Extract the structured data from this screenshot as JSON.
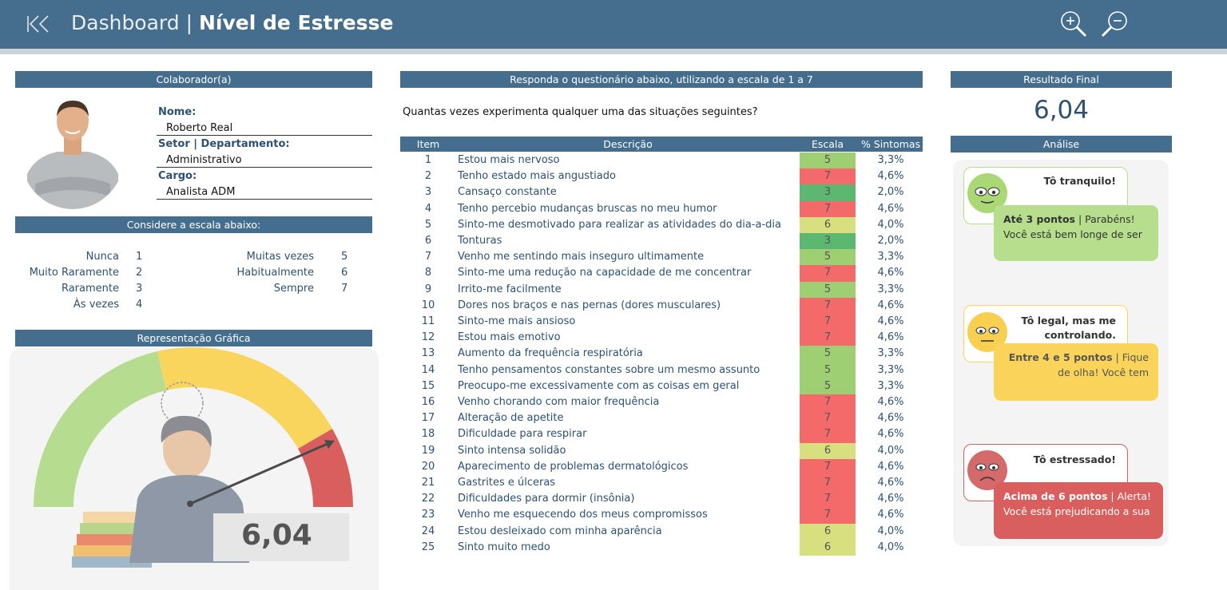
{
  "header": {
    "title_light": "Dashboard | ",
    "title_bold": "Nível de Estresse"
  },
  "employee": {
    "section_title": "Colaborador(a)",
    "name_label": "Nome:",
    "name_value": "Roberto Real",
    "sector_label": "Setor | Departamento:",
    "sector_value": "Administrativo",
    "role_label": "Cargo:",
    "role_value": "Analista ADM"
  },
  "scale": {
    "section_title": "Considere a escala abaixo:",
    "left": [
      {
        "label": "Nunca",
        "value": "1"
      },
      {
        "label": "Muito Raramente",
        "value": "2"
      },
      {
        "label": "Raramente",
        "value": "3"
      },
      {
        "label": "Às vezes",
        "value": "4"
      }
    ],
    "right": [
      {
        "label": "Muitas vezes",
        "value": "5"
      },
      {
        "label": "Habitualmente",
        "value": "6"
      },
      {
        "label": "Sempre",
        "value": "7"
      }
    ]
  },
  "graph": {
    "section_title": "Representação Gráfica",
    "value": "6,04"
  },
  "questionnaire": {
    "section_title": "Responda o questionário abaixo, utilizando a escala de 1 a 7",
    "question": "Quantas vezes experimenta qualquer uma das situações seguintes?",
    "columns": {
      "item": "Item",
      "description": "Descrição",
      "scale": "Escala",
      "pct": "% Sintomas"
    },
    "rows": [
      {
        "item": "1",
        "desc": "Estou mais nervoso",
        "scale": "5",
        "pct": "3,3%"
      },
      {
        "item": "2",
        "desc": "Tenho estado mais angustiado",
        "scale": "7",
        "pct": "4,6%"
      },
      {
        "item": "3",
        "desc": "Cansaço constante",
        "scale": "3",
        "pct": "2,0%"
      },
      {
        "item": "4",
        "desc": "Tenho percebio mudanças bruscas no meu humor",
        "scale": "7",
        "pct": "4,6%"
      },
      {
        "item": "5",
        "desc": "Sinto-me desmotivado para realizar as atividades do dia-a-dia",
        "scale": "6",
        "pct": "4,0%"
      },
      {
        "item": "6",
        "desc": "Tonturas",
        "scale": "3",
        "pct": "2,0%"
      },
      {
        "item": "7",
        "desc": "Venho me sentindo mais inseguro ultimamente",
        "scale": "5",
        "pct": "3,3%"
      },
      {
        "item": "8",
        "desc": "Sinto-me uma redução na capacidade de me concentrar",
        "scale": "7",
        "pct": "4,6%"
      },
      {
        "item": "9",
        "desc": "Irrito-me facilmente",
        "scale": "5",
        "pct": "3,3%"
      },
      {
        "item": "10",
        "desc": "Dores nos braços e nas pernas (dores musculares)",
        "scale": "7",
        "pct": "4,6%"
      },
      {
        "item": "11",
        "desc": "Sinto-me mais ansioso",
        "scale": "7",
        "pct": "4,6%"
      },
      {
        "item": "12",
        "desc": "Estou mais emotivo",
        "scale": "7",
        "pct": "4,6%"
      },
      {
        "item": "13",
        "desc": "Aumento da frequência respiratória",
        "scale": "5",
        "pct": "3,3%"
      },
      {
        "item": "14",
        "desc": "Tenho pensamentos constantes sobre um mesmo assunto",
        "scale": "5",
        "pct": "3,3%"
      },
      {
        "item": "15",
        "desc": "Preocupo-me excessivamente com as coisas em geral",
        "scale": "5",
        "pct": "3,3%"
      },
      {
        "item": "16",
        "desc": "Venho chorando com maior frequência",
        "scale": "7",
        "pct": "4,6%"
      },
      {
        "item": "17",
        "desc": "Alteração de apetite",
        "scale": "7",
        "pct": "4,6%"
      },
      {
        "item": "18",
        "desc": "Dificuldade para respirar",
        "scale": "7",
        "pct": "4,6%"
      },
      {
        "item": "19",
        "desc": "Sinto intensa solidão",
        "scale": "6",
        "pct": "4,0%"
      },
      {
        "item": "20",
        "desc": "Aparecimento de problemas dermatológicos",
        "scale": "7",
        "pct": "4,6%"
      },
      {
        "item": "21",
        "desc": "Gastrites e úlceras",
        "scale": "7",
        "pct": "4,6%"
      },
      {
        "item": "22",
        "desc": "Dificuldades para dormir (insônia)",
        "scale": "7",
        "pct": "4,6%"
      },
      {
        "item": "23",
        "desc": "Venho me esquecendo dos meus compromissos",
        "scale": "7",
        "pct": "4,6%"
      },
      {
        "item": "24",
        "desc": "Estou desleixado com minha aparência",
        "scale": "6",
        "pct": "4,0%"
      },
      {
        "item": "25",
        "desc": "Sinto muito medo",
        "scale": "6",
        "pct": "4,0%"
      }
    ]
  },
  "scale_colors": {
    "3": "#5cb870",
    "5": "#9ecf73",
    "6": "#d8df7e",
    "7": "#f46a6b"
  },
  "result": {
    "section_title": "Resultado Final",
    "value": "6,04",
    "analysis_title": "Análise"
  },
  "cards": {
    "green": {
      "title": "Tô tranquilo!",
      "bold": "Até 3 pontos",
      "text1": " | Parabéns!",
      "text2": "Você está bem longe de ser",
      "color": "#b6de8c"
    },
    "yellow": {
      "title1": "Tô legal, mas me",
      "title2": "controlando.",
      "bold": "Entre 4 e 5 pontos",
      "text1": " | Fique",
      "text2": "de olha! Você tem",
      "color": "#fad45a"
    },
    "red": {
      "title": "Tô estressado!",
      "bold": "Acima de 6 pontos",
      "text1": " | Alerta!",
      "text2": "Você está prejudicando a sua",
      "color": "#d95f5f"
    }
  },
  "icons": {
    "back": "skip-back-icon",
    "zoom_in": "zoom-in-icon",
    "zoom_out": "zoom-out-icon"
  }
}
